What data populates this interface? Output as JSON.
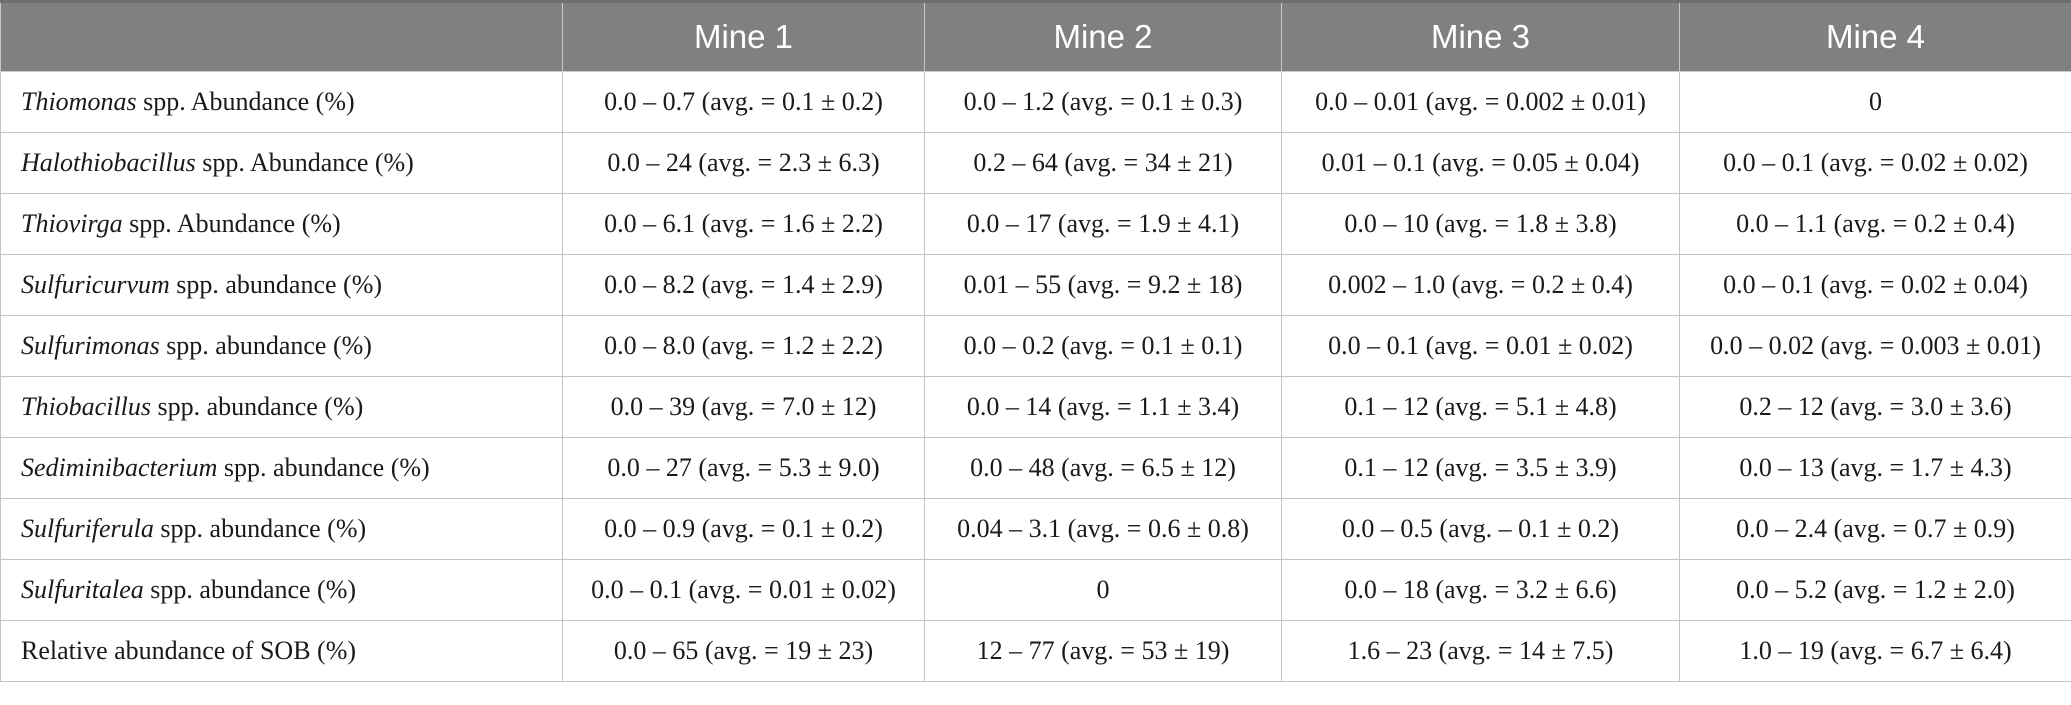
{
  "header": {
    "col0": "",
    "col1": "Mine 1",
    "col2": "Mine 2",
    "col3": "Mine 3",
    "col4": "Mine 4"
  },
  "rows": [
    {
      "genus": "Thiomonas",
      "suffix": " spp. Abundance (%)",
      "mine1": "0.0 – 0.7 (avg. = 0.1 ± 0.2)",
      "mine2": "0.0 – 1.2 (avg. = 0.1 ± 0.3)",
      "mine3": "0.0 – 0.01 (avg. = 0.002 ± 0.01)",
      "mine4": "0"
    },
    {
      "genus": "Halothiobacillus",
      "suffix": " spp. Abundance (%)",
      "mine1": "0.0 – 24 (avg. = 2.3 ± 6.3)",
      "mine2": "0.2 – 64 (avg. = 34 ± 21)",
      "mine3": "0.01 – 0.1 (avg. = 0.05 ± 0.04)",
      "mine4": "0.0 – 0.1 (avg. = 0.02 ± 0.02)"
    },
    {
      "genus": "Thiovirga",
      "suffix": " spp. Abundance (%)",
      "mine1": "0.0 – 6.1 (avg. = 1.6 ± 2.2)",
      "mine2": "0.0 – 17 (avg. = 1.9 ± 4.1)",
      "mine3": "0.0 – 10 (avg. = 1.8 ± 3.8)",
      "mine4": "0.0 – 1.1 (avg. = 0.2 ± 0.4)"
    },
    {
      "genus": "Sulfuricurvum",
      "suffix": " spp. abundance (%)",
      "mine1": "0.0 – 8.2 (avg. = 1.4 ± 2.9)",
      "mine2": "0.01 – 55 (avg. = 9.2 ± 18)",
      "mine3": "0.002 – 1.0 (avg. = 0.2 ± 0.4)",
      "mine4": "0.0 – 0.1 (avg. = 0.02 ± 0.04)"
    },
    {
      "genus": "Sulfurimonas",
      "suffix": " spp. abundance (%)",
      "mine1": "0.0 – 8.0 (avg. = 1.2 ± 2.2)",
      "mine2": "0.0 – 0.2 (avg. = 0.1 ± 0.1)",
      "mine3": "0.0 – 0.1 (avg. = 0.01 ± 0.02)",
      "mine4": "0.0 – 0.02 (avg. = 0.003 ± 0.01)"
    },
    {
      "genus": "Thiobacillus",
      "suffix": " spp. abundance (%)",
      "mine1": "0.0 – 39 (avg. = 7.0 ± 12)",
      "mine2": "0.0 – 14 (avg. = 1.1 ± 3.4)",
      "mine3": "0.1 – 12 (avg. = 5.1 ± 4.8)",
      "mine4": "0.2 – 12 (avg. = 3.0 ± 3.6)"
    },
    {
      "genus": "Sediminibacterium",
      "suffix": " spp. abundance (%)",
      "mine1": "0.0 – 27 (avg. = 5.3 ± 9.0)",
      "mine2": "0.0 – 48 (avg. = 6.5 ± 12)",
      "mine3": "0.1 – 12 (avg. = 3.5 ± 3.9)",
      "mine4": "0.0 – 13 (avg. = 1.7 ± 4.3)"
    },
    {
      "genus": "Sulfuriferula",
      "suffix": " spp. abundance (%)",
      "mine1": "0.0 – 0.9 (avg. = 0.1 ± 0.2)",
      "mine2": "0.04 – 3.1 (avg. = 0.6 ± 0.8)",
      "mine3": "0.0 – 0.5 (avg. – 0.1 ± 0.2)",
      "mine4": "0.0 – 2.4 (avg. = 0.7 ± 0.9)"
    },
    {
      "genus": "Sulfuritalea",
      "suffix": " spp. abundance (%)",
      "mine1": "0.0 – 0.1 (avg. = 0.01 ± 0.02)",
      "mine2": "0",
      "mine3": "0.0 – 18 (avg. = 3.2 ± 6.6)",
      "mine4": "0.0 – 5.2 (avg. = 1.2 ± 2.0)"
    },
    {
      "genus": "",
      "suffix": "Relative abundance of SOB (%)",
      "mine1": "0.0 – 65 (avg. = 19 ± 23)",
      "mine2": "12 – 77 (avg. = 53 ± 19)",
      "mine3": "1.6 – 23 (avg. = 14 ± 7.5)",
      "mine4": "1.0 – 19 (avg. = 6.7 ± 6.4)"
    }
  ]
}
